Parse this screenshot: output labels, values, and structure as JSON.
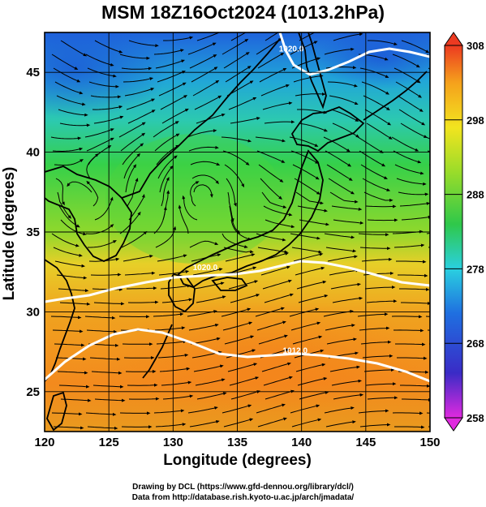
{
  "title": "MSM 18Z16Oct2024 (1013.2hPa)",
  "axes": {
    "xlabel": "Longitude (degrees)",
    "ylabel": "Latitude  (degrees)",
    "x_range": [
      120,
      150
    ],
    "y_range": [
      22.5,
      47.5
    ],
    "x_ticks": [
      "120",
      "125",
      "130",
      "135",
      "140",
      "145",
      "150"
    ],
    "y_ticks": [
      "25",
      "30",
      "35",
      "40",
      "45"
    ],
    "grid": true
  },
  "colorbar": {
    "range": [
      258,
      308
    ],
    "ticks": [
      "308",
      "298",
      "288",
      "278",
      "268",
      "258"
    ],
    "colors": [
      "#e02adf",
      "#2a35c8",
      "#1a9ee0",
      "#2fd0d0",
      "#2fc84a",
      "#9adc2a",
      "#f2e41f",
      "#f5a11c",
      "#ec3a21"
    ]
  },
  "isobars": [
    {
      "label": "1020.0",
      "lon": 139.2,
      "lat": 46.3
    },
    {
      "label": "1020.0",
      "lon": 132.5,
      "lat": 32.6
    },
    {
      "label": "1012.0",
      "lon": 139.5,
      "lat": 27.4
    }
  ],
  "credits": {
    "line1": "Drawing by DCL (https://www.gfd-dennou.org/library/dcl/)",
    "line2": "Data from http://database.rish.kyoto-u.ac.jp/arch/jmadata/"
  },
  "map_colors": {
    "cold": "#1f6fe0",
    "cool": "#2ac9c0",
    "mild": "#3ed24a",
    "warm": "#e8d02a",
    "hot": "#f58a1e",
    "coast": "#000000",
    "isobar": "#ffffff"
  }
}
